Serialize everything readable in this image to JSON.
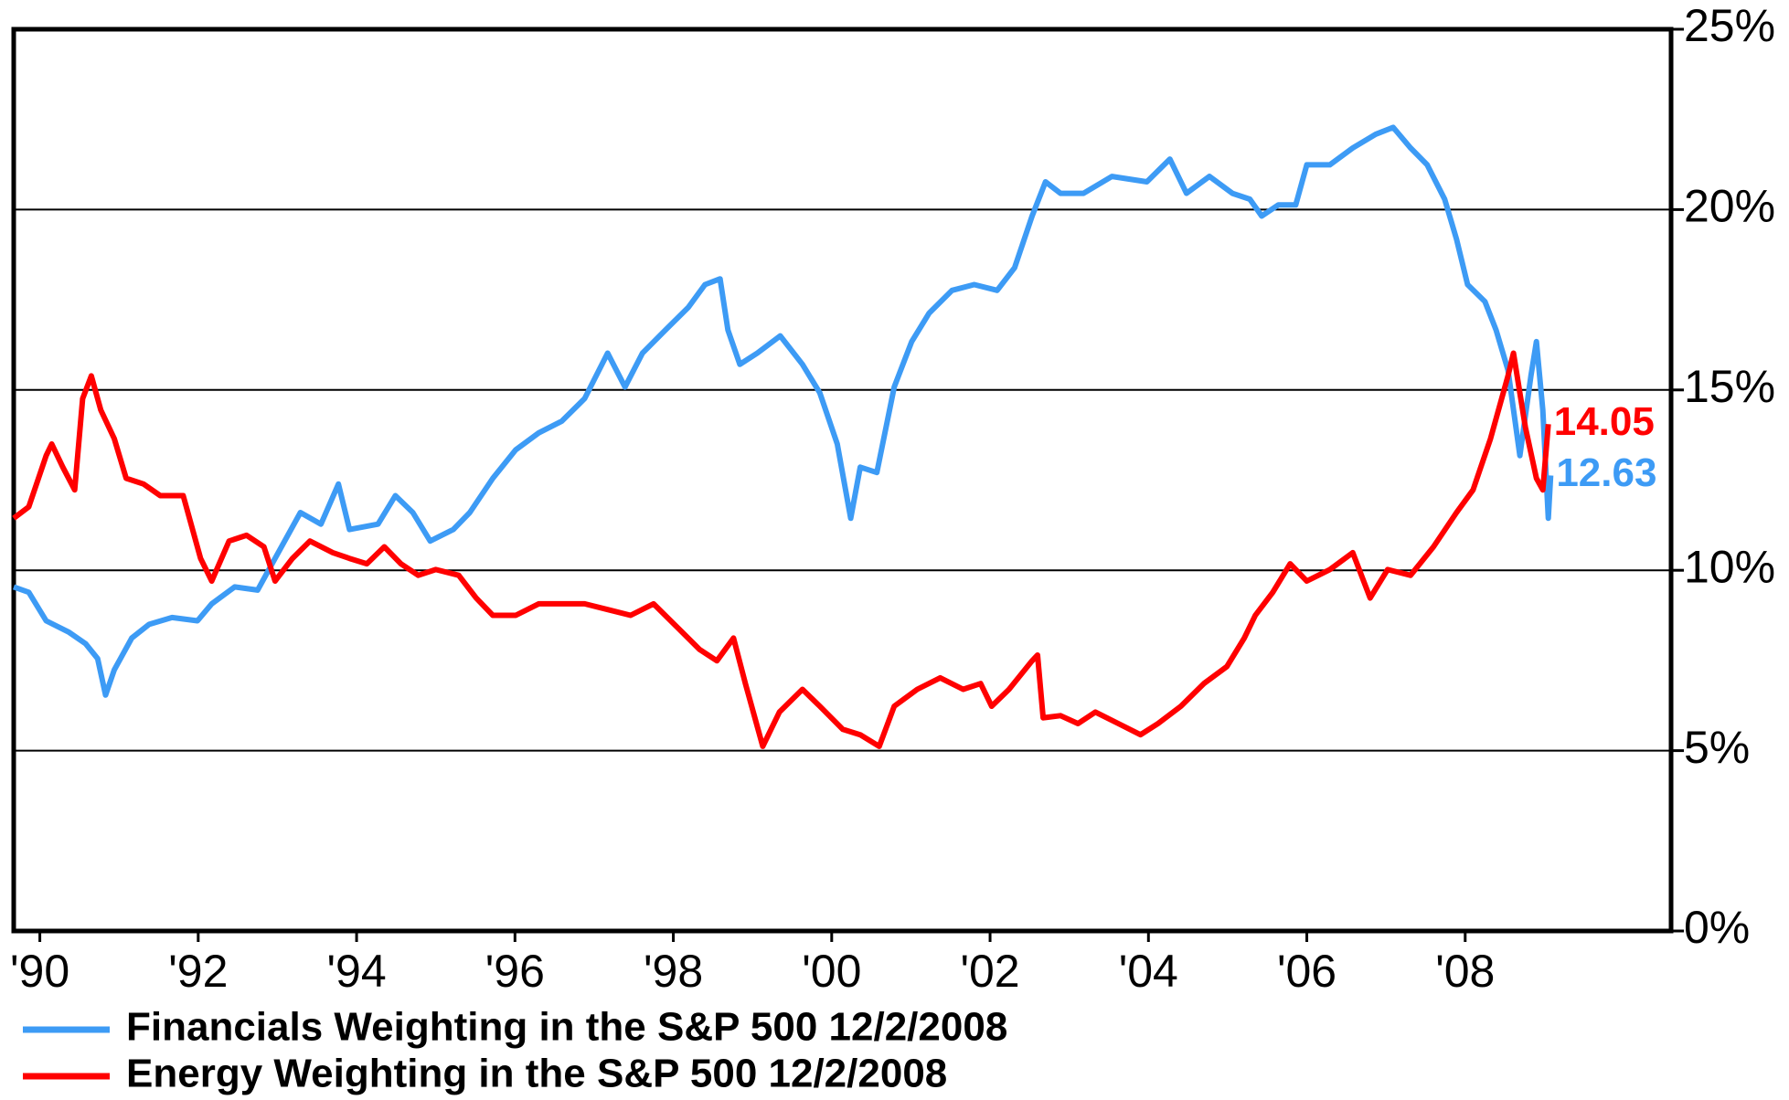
{
  "chart_data": {
    "type": "line",
    "xlim": [
      1989.67,
      2010.6
    ],
    "xticks": [
      {
        "value": 1990,
        "label": "'90"
      },
      {
        "value": 1992,
        "label": "'92"
      },
      {
        "value": 1994,
        "label": "'94"
      },
      {
        "value": 1996,
        "label": "'96"
      },
      {
        "value": 1998,
        "label": "'98"
      },
      {
        "value": 2000,
        "label": "'00"
      },
      {
        "value": 2002,
        "label": "'02"
      },
      {
        "value": 2004,
        "label": "'04"
      },
      {
        "value": 2006,
        "label": "'06"
      },
      {
        "value": 2008,
        "label": "'08"
      }
    ],
    "ylim": [
      0,
      25
    ],
    "yticks": [
      {
        "value": 0,
        "label": "0%"
      },
      {
        "value": 5,
        "label": "5%"
      },
      {
        "value": 10,
        "label": "10%"
      },
      {
        "value": 15,
        "label": "15%"
      },
      {
        "value": 20,
        "label": "20%"
      },
      {
        "value": 25,
        "label": "25%"
      }
    ],
    "grid": true,
    "legend": "bottom-left",
    "series": [
      {
        "name": "Financials Weighting in the S&P 500 12/2/2008",
        "color": "#3d9bf5",
        "x": [
          1989.67,
          1989.86,
          1990.08,
          1990.37,
          1990.58,
          1990.73,
          1990.83,
          1990.94,
          1991.16,
          1991.38,
          1991.67,
          1991.99,
          1992.17,
          1992.46,
          1992.75,
          1992.97,
          1993.29,
          1993.55,
          1993.77,
          1993.91,
          1994.27,
          1994.49,
          1994.71,
          1994.93,
          1995.22,
          1995.43,
          1995.72,
          1996.01,
          1996.3,
          1996.59,
          1996.88,
          1997.17,
          1997.39,
          1997.61,
          1997.9,
          1998.19,
          1998.4,
          1998.59,
          1998.69,
          1998.84,
          1999.06,
          1999.35,
          1999.63,
          1999.85,
          2000.07,
          2000.24,
          2000.36,
          2000.57,
          2000.79,
          2001.01,
          2001.23,
          2001.52,
          2001.8,
          2002.09,
          2002.31,
          2002.53,
          2002.7,
          2002.89,
          2003.18,
          2003.54,
          2003.98,
          2004.27,
          2004.48,
          2004.77,
          2005.06,
          2005.28,
          2005.43,
          2005.64,
          2005.86,
          2006.0,
          2006.29,
          2006.58,
          2006.87,
          2007.09,
          2007.31,
          2007.52,
          2007.74,
          2007.89,
          2008.03,
          2008.25,
          2008.39,
          2008.54,
          2008.69,
          2008.83,
          2008.9,
          2008.98,
          2009.05,
          2009.08
        ],
        "values": [
          9.54,
          9.39,
          8.6,
          8.28,
          7.96,
          7.55,
          6.54,
          7.24,
          8.12,
          8.5,
          8.69,
          8.6,
          9.07,
          9.54,
          9.45,
          10.33,
          11.6,
          11.28,
          12.39,
          11.13,
          11.28,
          12.07,
          11.6,
          10.81,
          11.13,
          11.6,
          12.55,
          13.34,
          13.81,
          14.13,
          14.76,
          16.02,
          15.08,
          16.02,
          16.66,
          17.29,
          17.92,
          18.08,
          16.66,
          15.71,
          16.02,
          16.5,
          15.71,
          14.92,
          13.5,
          11.44,
          12.86,
          12.71,
          15.08,
          16.34,
          17.13,
          17.76,
          17.92,
          17.76,
          18.39,
          19.82,
          20.77,
          20.45,
          20.45,
          20.92,
          20.77,
          21.4,
          20.45,
          20.92,
          20.45,
          20.29,
          19.82,
          20.13,
          20.13,
          21.24,
          21.24,
          21.71,
          22.09,
          22.28,
          21.71,
          21.24,
          20.29,
          19.18,
          17.92,
          17.45,
          16.66,
          15.55,
          13.18,
          15.39,
          16.34,
          14.44,
          11.44,
          12.63
        ]
      },
      {
        "name": "Energy Weighting in the S&P 500 12/2/2008",
        "color": "#ff0000",
        "x": [
          1989.67,
          1989.86,
          1990.08,
          1990.15,
          1990.29,
          1990.44,
          1990.54,
          1990.65,
          1990.77,
          1990.94,
          1991.09,
          1991.31,
          1991.52,
          1991.81,
          1992.03,
          1992.17,
          1992.39,
          1992.61,
          1992.83,
          1992.97,
          1993.19,
          1993.41,
          1993.7,
          1993.91,
          1994.13,
          1994.35,
          1994.56,
          1994.78,
          1995.0,
          1995.29,
          1995.51,
          1995.72,
          1996.01,
          1996.3,
          1996.59,
          1996.88,
          1997.17,
          1997.46,
          1997.75,
          1998.04,
          1998.33,
          1998.55,
          1998.76,
          1998.91,
          1999.13,
          1999.34,
          1999.63,
          1999.85,
          2000.14,
          2000.36,
          2000.6,
          2000.79,
          2001.08,
          2001.37,
          2001.66,
          2001.88,
          2002.02,
          2002.24,
          2002.53,
          2002.6,
          2002.67,
          2002.89,
          2003.11,
          2003.33,
          2003.62,
          2003.9,
          2004.12,
          2004.41,
          2004.7,
          2004.99,
          2005.21,
          2005.35,
          2005.57,
          2005.79,
          2006.0,
          2006.29,
          2006.58,
          2006.8,
          2007.02,
          2007.31,
          2007.6,
          2007.89,
          2008.1,
          2008.32,
          2008.54,
          2008.61,
          2008.76,
          2008.9,
          2008.98,
          2009.05
        ],
        "values": [
          11.44,
          11.76,
          13.18,
          13.5,
          12.86,
          12.23,
          14.76,
          15.39,
          14.44,
          13.65,
          12.55,
          12.39,
          12.07,
          12.07,
          10.33,
          9.7,
          10.81,
          10.97,
          10.65,
          9.7,
          10.33,
          10.81,
          10.49,
          10.33,
          10.18,
          10.65,
          10.18,
          9.86,
          10.02,
          9.86,
          9.23,
          8.75,
          8.75,
          9.07,
          9.07,
          9.07,
          8.91,
          8.75,
          9.07,
          8.44,
          7.81,
          7.49,
          8.12,
          6.86,
          5.12,
          6.07,
          6.7,
          6.23,
          5.59,
          5.44,
          5.12,
          6.23,
          6.7,
          7.02,
          6.7,
          6.86,
          6.23,
          6.7,
          7.49,
          7.65,
          5.91,
          5.97,
          5.75,
          6.07,
          5.75,
          5.44,
          5.75,
          6.23,
          6.86,
          7.33,
          8.12,
          8.75,
          9.39,
          10.18,
          9.7,
          10.02,
          10.49,
          9.23,
          10.02,
          9.86,
          10.65,
          11.6,
          12.23,
          13.65,
          15.39,
          16.02,
          13.97,
          12.55,
          12.23,
          14.05
        ]
      }
    ]
  }
}
